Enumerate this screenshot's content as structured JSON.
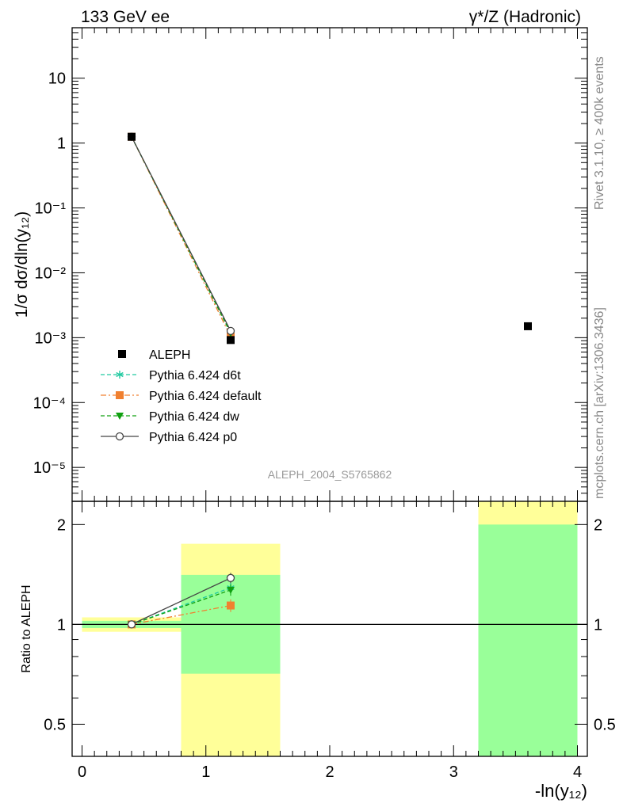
{
  "header": {
    "left": "133 GeV ee",
    "right": "γ*/Z (Hadronic)"
  },
  "side_labels": {
    "version": "Rivet 3.1.10, ≥ 400k events",
    "site": "mcplots.cern.ch [arXiv:1306.3436]"
  },
  "chart_data": [
    {
      "type": "scatter",
      "id": "main",
      "ylabel": "1/σ  dσ/dln(y₁₂)",
      "yscale": "log",
      "ylim": [
        3e-06,
        60
      ],
      "xlim": [
        -0.08,
        4.08
      ],
      "ytick_values": [
        1e-05,
        0.0001,
        0.001,
        0.01,
        0.1,
        1,
        10
      ],
      "ytick_labels": [
        "10⁻⁵",
        "10⁻⁴",
        "10⁻³",
        "10⁻²",
        "10⁻¹",
        "1",
        "10"
      ],
      "watermark": "ALEPH_2004_S5765862",
      "legend_position": "bottom-left",
      "series": [
        {
          "name": "ALEPH",
          "style": "data",
          "color": "#000000",
          "marker": "square",
          "x": [
            0.4,
            1.2,
            3.6
          ],
          "y": [
            1.25,
            0.00092,
            0.0015
          ]
        },
        {
          "name": "Pythia 6.424 d6t",
          "style": "dashed",
          "color": "#20c9a0",
          "marker": "star",
          "x": [
            0.4,
            1.2
          ],
          "y": [
            1.25,
            0.00118
          ]
        },
        {
          "name": "Pythia 6.424 default",
          "style": "dashdot",
          "color": "#f08030",
          "marker": "square",
          "x": [
            0.4,
            1.2
          ],
          "y": [
            1.25,
            0.00104
          ]
        },
        {
          "name": "Pythia 6.424 dw",
          "style": "dashed",
          "color": "#10a010",
          "marker": "triangle-down",
          "x": [
            0.4,
            1.2
          ],
          "y": [
            1.25,
            0.00117
          ]
        },
        {
          "name": "Pythia 6.424 p0",
          "style": "solid",
          "color": "#444444",
          "marker": "circle-open",
          "x": [
            0.4,
            1.2
          ],
          "y": [
            1.25,
            0.00127
          ]
        }
      ]
    },
    {
      "type": "scatter",
      "id": "ratio",
      "ylabel": "Ratio to ALEPH",
      "xlabel": "-ln(y₁₂)",
      "yscale": "log",
      "ylim": [
        0.4,
        2.35
      ],
      "xlim": [
        -0.08,
        4.08
      ],
      "reference_line": 1,
      "ytick_values": [
        0.5,
        1,
        2
      ],
      "ytick_labels": [
        "0.5",
        "1",
        "2"
      ],
      "xtick_values": [
        0,
        1,
        2,
        3,
        4
      ],
      "xtick_labels": [
        "0",
        "1",
        "2",
        "3",
        "4"
      ],
      "bands": [
        {
          "x0": 0.0,
          "x1": 0.8,
          "green": [
            0.975,
            1.025
          ],
          "yellow": [
            0.95,
            1.05
          ]
        },
        {
          "x0": 0.8,
          "x1": 1.6,
          "green": [
            0.71,
            1.41
          ],
          "yellow": [
            0.4,
            1.75
          ]
        },
        {
          "x0": 3.2,
          "x1": 4.0,
          "green": [
            0.4,
            2.0
          ],
          "yellow": [
            0.4,
            2.35
          ]
        }
      ],
      "series": [
        {
          "name": "Pythia 6.424 d6t",
          "x": [
            0.4,
            1.2
          ],
          "y": [
            1.0,
            1.29
          ],
          "err": [
            0,
            0.05
          ]
        },
        {
          "name": "Pythia 6.424 default",
          "x": [
            0.4,
            1.2
          ],
          "y": [
            1.0,
            1.14
          ],
          "err": [
            0,
            0.05
          ]
        },
        {
          "name": "Pythia 6.424 dw",
          "x": [
            0.4,
            1.2
          ],
          "y": [
            1.0,
            1.27
          ],
          "err": [
            0,
            0.05
          ]
        },
        {
          "name": "Pythia 6.424 p0",
          "x": [
            0.4,
            1.2
          ],
          "y": [
            1.0,
            1.38
          ],
          "err": [
            0,
            0.05
          ]
        }
      ]
    }
  ]
}
